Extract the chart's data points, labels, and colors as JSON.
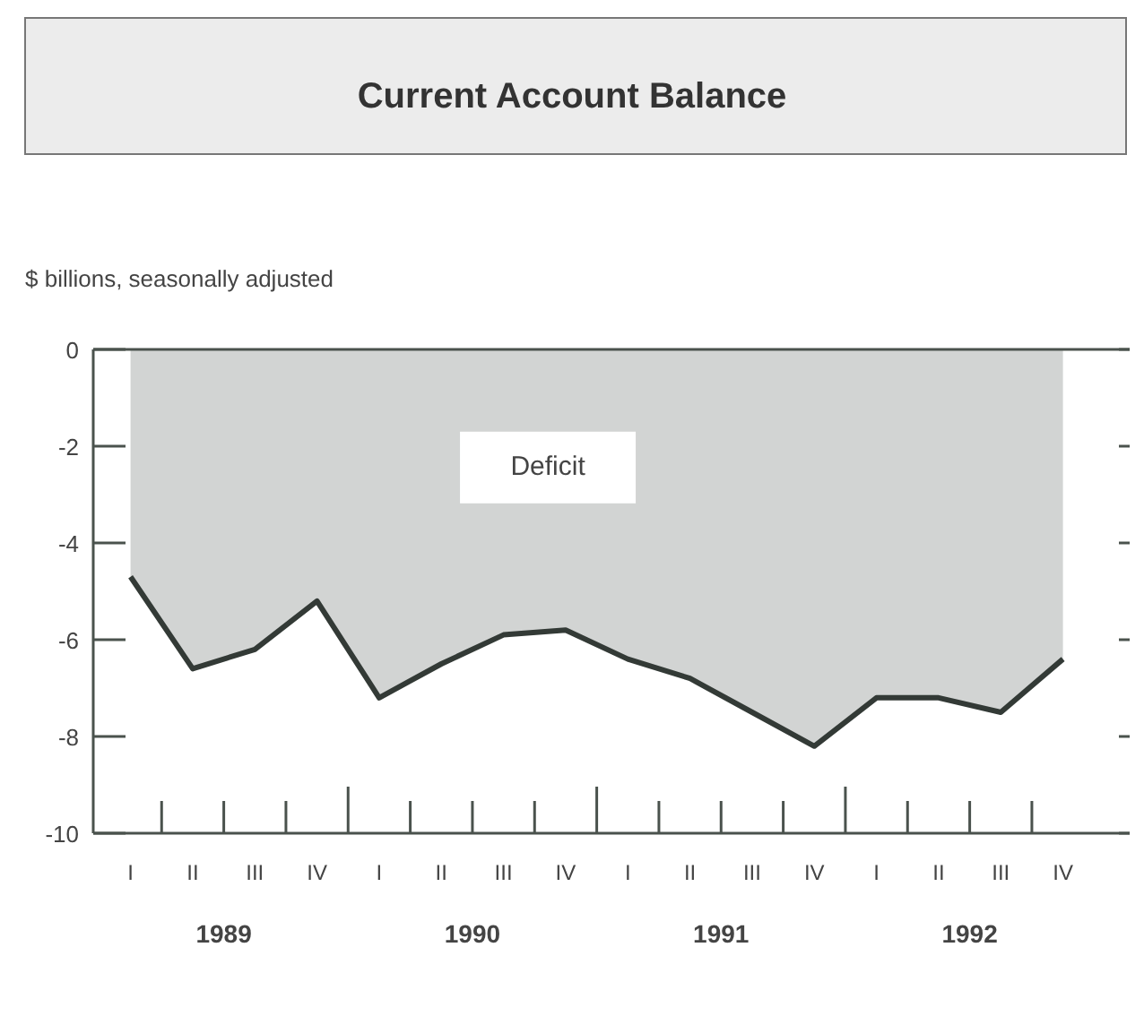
{
  "chart_data": {
    "type": "area",
    "title": "Current Account Balance",
    "subtitle": "$ billions, seasonally adjusted",
    "categories": [
      "I",
      "II",
      "III",
      "IV",
      "I",
      "II",
      "III",
      "IV",
      "I",
      "II",
      "III",
      "IV",
      "I",
      "II",
      "III",
      "IV"
    ],
    "series": [
      {
        "color": "#333a36",
        "values": [
          -4.7,
          -6.6,
          -6.2,
          -5.2,
          -7.2,
          -6.5,
          -5.9,
          -5.8,
          -6.4,
          -6.8,
          -7.5,
          -8.2,
          -7.2,
          -7.2,
          -7.5,
          -6.4
        ]
      }
    ],
    "ylim": [
      -10,
      0
    ],
    "yticks": [
      0,
      -2,
      -4,
      -6,
      -8,
      -10
    ],
    "annotations": [
      "Deficit",
      "1989",
      "1990",
      "1991",
      "1992"
    ],
    "grid": false
  }
}
